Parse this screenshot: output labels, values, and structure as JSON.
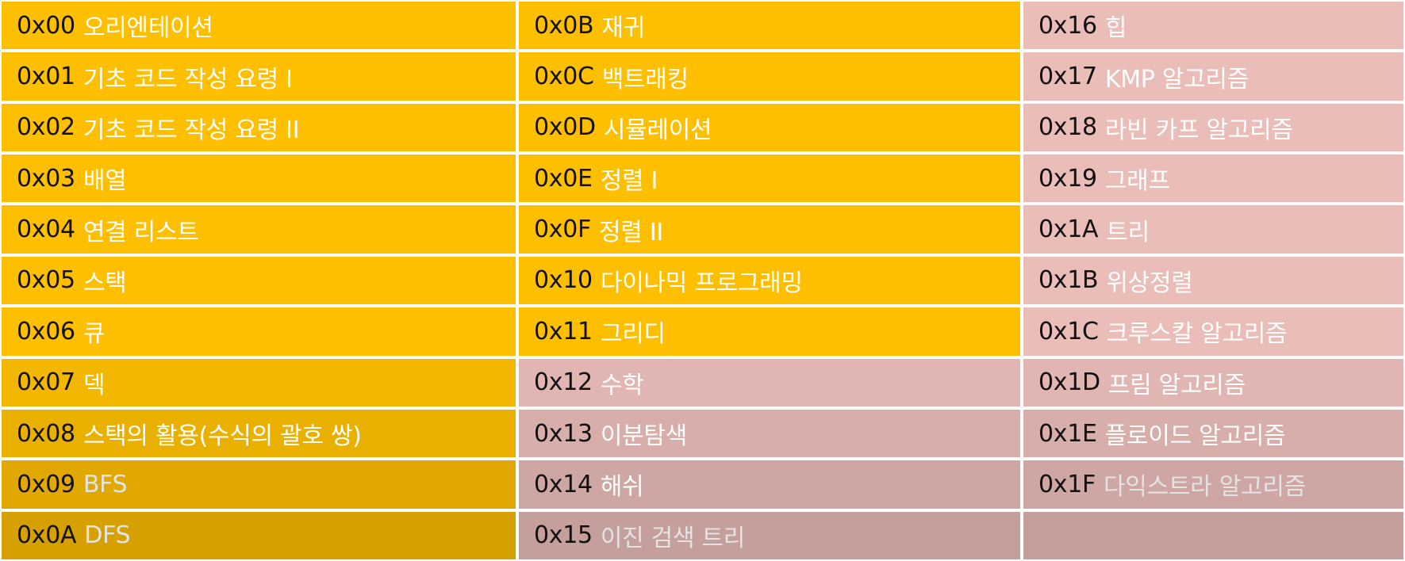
{
  "colors": {
    "orange": "#FEBF00",
    "pink": "#EABDB9",
    "title_white": "#FFFFFF",
    "title_gray": "#E3E3E3"
  },
  "columns": [
    [
      {
        "code": "0x00",
        "title": "오리엔테이션",
        "bg": "orange",
        "fg": "title_white"
      },
      {
        "code": "0x01",
        "title": "기초 코드 작성 요령 I",
        "bg": "orange",
        "fg": "title_white"
      },
      {
        "code": "0x02",
        "title": "기초 코드 작성 요령 II",
        "bg": "orange",
        "fg": "title_white"
      },
      {
        "code": "0x03",
        "title": "배열",
        "bg": "orange",
        "fg": "title_white"
      },
      {
        "code": "0x04",
        "title": "연결 리스트",
        "bg": "orange",
        "fg": "title_white"
      },
      {
        "code": "0x05",
        "title": "스택",
        "bg": "orange",
        "fg": "title_white"
      },
      {
        "code": "0x06",
        "title": "큐",
        "bg": "orange",
        "fg": "title_white"
      },
      {
        "code": "0x07",
        "title": "덱",
        "bg": "orange",
        "fg": "title_white"
      },
      {
        "code": "0x08",
        "title": "스택의 활용(수식의 괄호 쌍)",
        "bg": "orange",
        "fg": "title_white"
      },
      {
        "code": "0x09",
        "title": "BFS",
        "bg": "orange",
        "fg": "title_gray"
      },
      {
        "code": "0x0A",
        "title": "DFS",
        "bg": "orange",
        "fg": "title_gray"
      }
    ],
    [
      {
        "code": "0x0B",
        "title": "재귀",
        "bg": "orange",
        "fg": "title_white"
      },
      {
        "code": "0x0C",
        "title": "백트래킹",
        "bg": "orange",
        "fg": "title_white"
      },
      {
        "code": "0x0D",
        "title": "시뮬레이션",
        "bg": "orange",
        "fg": "title_white"
      },
      {
        "code": "0x0E",
        "title": "정렬 I",
        "bg": "orange",
        "fg": "title_white"
      },
      {
        "code": "0x0F",
        "title": "정렬 II",
        "bg": "orange",
        "fg": "title_white"
      },
      {
        "code": "0x10",
        "title": "다이나믹 프로그래밍",
        "bg": "orange",
        "fg": "title_white"
      },
      {
        "code": "0x11",
        "title": "그리디",
        "bg": "orange",
        "fg": "title_white"
      },
      {
        "code": "0x12",
        "title": "수학",
        "bg": "pink",
        "fg": "title_white"
      },
      {
        "code": "0x13",
        "title": "이분탐색",
        "bg": "pink",
        "fg": "title_white"
      },
      {
        "code": "0x14",
        "title": "해쉬",
        "bg": "pink",
        "fg": "title_white"
      },
      {
        "code": "0x15",
        "title": "이진 검색 트리",
        "bg": "pink",
        "fg": "title_gray"
      }
    ],
    [
      {
        "code": "0x16",
        "title": "힙",
        "bg": "pink",
        "fg": "title_white"
      },
      {
        "code": "0x17",
        "title": "KMP 알고리즘",
        "bg": "pink",
        "fg": "title_white"
      },
      {
        "code": "0x18",
        "title": "라빈 카프 알고리즘",
        "bg": "pink",
        "fg": "title_white"
      },
      {
        "code": "0x19",
        "title": "그래프",
        "bg": "pink",
        "fg": "title_white"
      },
      {
        "code": "0x1A",
        "title": "트리",
        "bg": "pink",
        "fg": "title_white"
      },
      {
        "code": "0x1B",
        "title": "위상정렬",
        "bg": "pink",
        "fg": "title_white"
      },
      {
        "code": "0x1C",
        "title": "크루스칼 알고리즘",
        "bg": "pink",
        "fg": "title_white"
      },
      {
        "code": "0x1D",
        "title": "프림 알고리즘",
        "bg": "pink",
        "fg": "title_white"
      },
      {
        "code": "0x1E",
        "title": "플로이드 알고리즘",
        "bg": "pink",
        "fg": "title_white"
      },
      {
        "code": "0x1F",
        "title": "다익스트라 알고리즘",
        "bg": "pink",
        "fg": "title_gray"
      },
      {
        "code": "",
        "title": "",
        "bg": "pink",
        "fg": "title_white"
      }
    ]
  ]
}
